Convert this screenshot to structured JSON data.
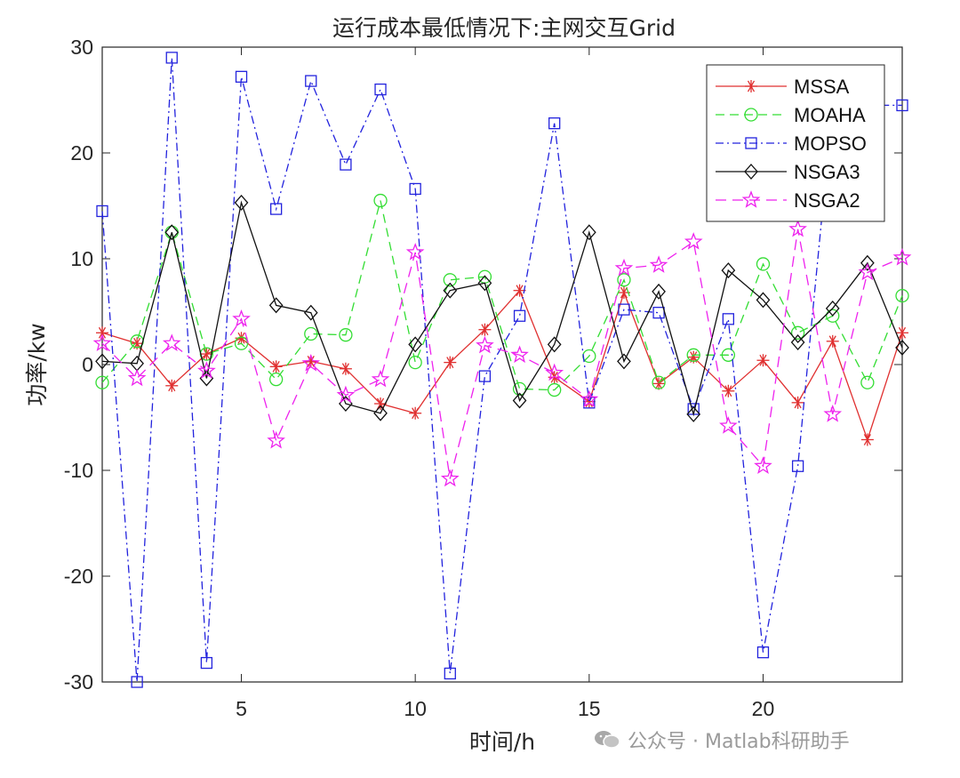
{
  "chart_data": {
    "type": "line",
    "title": "运行成本最低情况下:主网交互Grid",
    "xlabel": "时间/h",
    "ylabel": "功率/kw",
    "xlim": [
      1,
      24
    ],
    "ylim": [
      -30,
      30
    ],
    "xticks": [
      5,
      10,
      15,
      20
    ],
    "yticks": [
      -30,
      -20,
      -10,
      0,
      10,
      20,
      30
    ],
    "grid": false,
    "legend_position": "top-right",
    "x": [
      1,
      2,
      3,
      4,
      5,
      6,
      7,
      8,
      9,
      10,
      11,
      12,
      13,
      14,
      15,
      16,
      17,
      18,
      19,
      20,
      21,
      22,
      23,
      24
    ],
    "series": [
      {
        "name": "MSSA",
        "color": "#e03030",
        "dash": "",
        "marker": "asterisk",
        "values": [
          3,
          2,
          -2,
          1,
          2.5,
          -0.2,
          0.3,
          -0.4,
          -3.7,
          -4.6,
          0.2,
          3.3,
          7,
          -1.2,
          -3.5,
          6.8,
          -1.8,
          0.7,
          -2.5,
          0.4,
          -3.6,
          2.2,
          -7.1,
          3
        ]
      },
      {
        "name": "MOAHA",
        "color": "#33dd33",
        "dash": "10,6",
        "marker": "circle",
        "values": [
          -1.7,
          2.2,
          12.5,
          1,
          2,
          -1.4,
          2.9,
          2.8,
          15.5,
          0.2,
          8,
          8.3,
          -2.3,
          -2.4,
          0.8,
          8,
          -1.7,
          0.9,
          0.9,
          9.5,
          3,
          4.6,
          -1.7,
          6.5
        ]
      },
      {
        "name": "MOPSO",
        "color": "#2222dd",
        "dash": "9,4,2,4",
        "marker": "square",
        "values": [
          14.5,
          -30,
          29,
          -28.2,
          27.2,
          14.7,
          26.8,
          18.9,
          26,
          16.6,
          -29.2,
          -1.1,
          4.6,
          22.8,
          -3.6,
          5.2,
          4.9,
          -4.2,
          4.3,
          -27.2,
          -9.6,
          24.5,
          24.5,
          24.5
        ]
      },
      {
        "name": "NSGA3",
        "color": "#111111",
        "dash": "",
        "marker": "diamond",
        "values": [
          0.3,
          0.1,
          12.5,
          -1.3,
          15.3,
          5.6,
          4.9,
          -3.7,
          -4.6,
          1.9,
          7,
          7.7,
          -3.4,
          1.9,
          12.5,
          0.3,
          6.9,
          -4.7,
          8.9,
          6.1,
          2.1,
          5.3,
          9.6,
          1.6
        ]
      },
      {
        "name": "NSGA2",
        "color": "#ee22ee",
        "dash": "12,7",
        "marker": "star",
        "values": [
          2,
          -1.3,
          2,
          -0.6,
          4.3,
          -7.2,
          0.1,
          -2.9,
          -1.4,
          10.6,
          -10.8,
          1.8,
          0.9,
          -0.8,
          -3.3,
          9.1,
          9.4,
          11.6,
          -5.8,
          -9.6,
          12.8,
          -4.7,
          8.7,
          10.1
        ]
      }
    ]
  },
  "watermark": {
    "icon": "wechat-icon",
    "text": "公众号 · Matlab科研助手"
  }
}
